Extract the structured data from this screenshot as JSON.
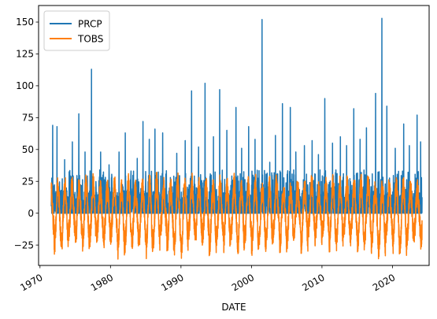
{
  "chart_data": {
    "type": "line",
    "title": "",
    "xlabel": "DATE",
    "ylabel": "",
    "xlim": [
      1969.8,
      2025.2
    ],
    "ylim": [
      -41,
      163
    ],
    "x_ticks": [
      1970,
      1980,
      1990,
      2000,
      2010,
      2020
    ],
    "y_ticks": [
      -25,
      0,
      25,
      50,
      75,
      100,
      125,
      150
    ],
    "x_range": [
      1971.6,
      2024.2
    ],
    "grid": false,
    "legend_position": "top-left",
    "series": [
      {
        "name": "PRCP",
        "color": "#1f77b4",
        "baseline": 0,
        "typical_range": [
          0,
          30
        ],
        "peaks": [
          {
            "x": 1971.8,
            "y": 69
          },
          {
            "x": 1972.4,
            "y": 68
          },
          {
            "x": 1973.5,
            "y": 42
          },
          {
            "x": 1974.6,
            "y": 56
          },
          {
            "x": 1975.5,
            "y": 78
          },
          {
            "x": 1976.4,
            "y": 48
          },
          {
            "x": 1977.3,
            "y": 113
          },
          {
            "x": 1978.6,
            "y": 48
          },
          {
            "x": 1979.8,
            "y": 38
          },
          {
            "x": 1981.2,
            "y": 48
          },
          {
            "x": 1982.1,
            "y": 63
          },
          {
            "x": 1983.8,
            "y": 43
          },
          {
            "x": 1984.6,
            "y": 72
          },
          {
            "x": 1985.5,
            "y": 58
          },
          {
            "x": 1986.3,
            "y": 66
          },
          {
            "x": 1987.4,
            "y": 63
          },
          {
            "x": 1988.5,
            "y": 28
          },
          {
            "x": 1989.4,
            "y": 47
          },
          {
            "x": 1990.6,
            "y": 57
          },
          {
            "x": 1991.5,
            "y": 96
          },
          {
            "x": 1992.5,
            "y": 52
          },
          {
            "x": 1993.4,
            "y": 102
          },
          {
            "x": 1994.6,
            "y": 60
          },
          {
            "x": 1995.5,
            "y": 97
          },
          {
            "x": 1996.5,
            "y": 65
          },
          {
            "x": 1997.8,
            "y": 83
          },
          {
            "x": 1998.6,
            "y": 51
          },
          {
            "x": 1999.6,
            "y": 68
          },
          {
            "x": 2000.5,
            "y": 58
          },
          {
            "x": 2001.5,
            "y": 152
          },
          {
            "x": 2002.6,
            "y": 40
          },
          {
            "x": 2003.4,
            "y": 61
          },
          {
            "x": 2004.4,
            "y": 86
          },
          {
            "x": 2005.5,
            "y": 83
          },
          {
            "x": 2006.3,
            "y": 48
          },
          {
            "x": 2007.5,
            "y": 53
          },
          {
            "x": 2008.6,
            "y": 57
          },
          {
            "x": 2009.5,
            "y": 46
          },
          {
            "x": 2010.4,
            "y": 90
          },
          {
            "x": 2011.5,
            "y": 55
          },
          {
            "x": 2012.6,
            "y": 60
          },
          {
            "x": 2013.5,
            "y": 53
          },
          {
            "x": 2014.5,
            "y": 82
          },
          {
            "x": 2015.4,
            "y": 58
          },
          {
            "x": 2016.3,
            "y": 67
          },
          {
            "x": 2017.6,
            "y": 94
          },
          {
            "x": 2018.5,
            "y": 153
          },
          {
            "x": 2019.2,
            "y": 84
          },
          {
            "x": 2020.4,
            "y": 51
          },
          {
            "x": 2021.6,
            "y": 70
          },
          {
            "x": 2022.4,
            "y": 53
          },
          {
            "x": 2023.5,
            "y": 77
          },
          {
            "x": 2024.0,
            "y": 56
          }
        ]
      },
      {
        "name": "TOBS",
        "color": "#ff7f0e",
        "pattern": "seasonal",
        "period_years": 1,
        "summer_range": [
          22,
          32
        ],
        "winter_range": [
          -35,
          -15
        ]
      }
    ]
  }
}
